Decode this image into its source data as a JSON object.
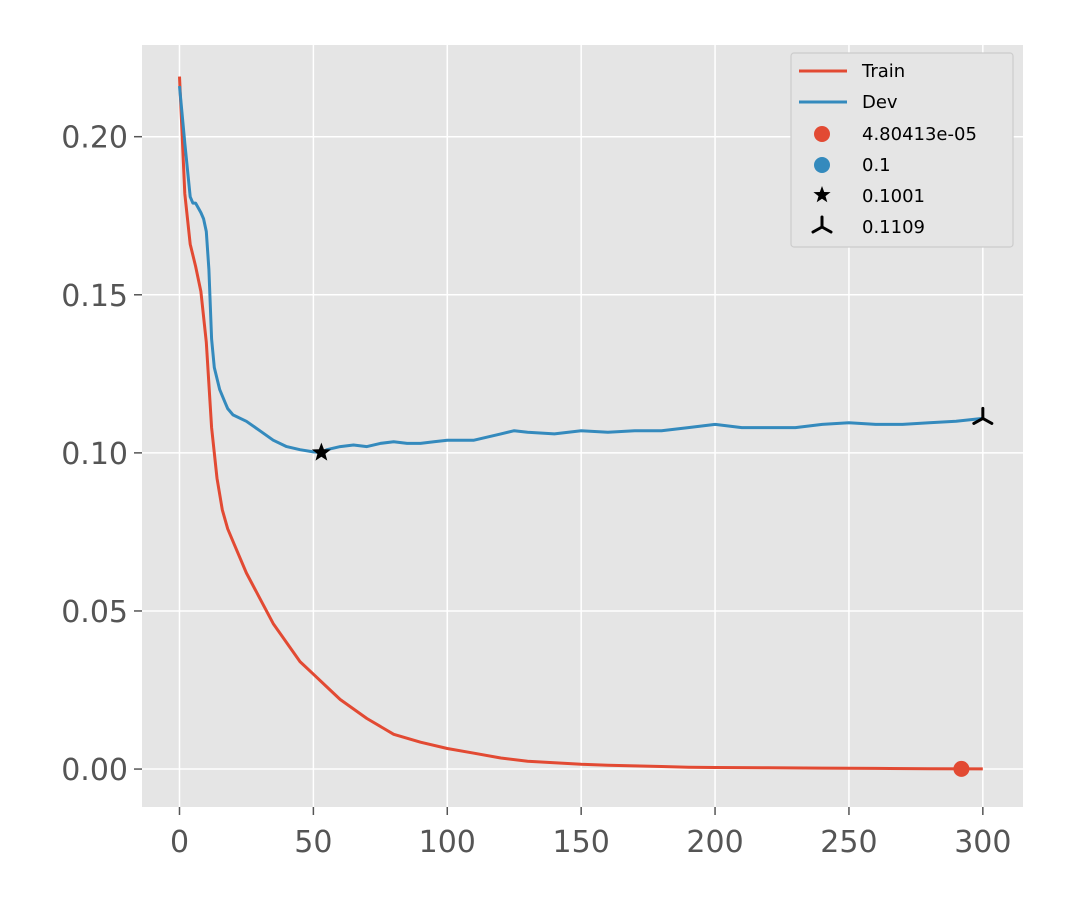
{
  "chart_data": {
    "type": "line",
    "title": "",
    "xlabel": "",
    "ylabel": "",
    "xlim": [
      -14,
      315
    ],
    "ylim": [
      -0.012,
      0.229
    ],
    "grid": true,
    "legend_position": "top-right",
    "x_ticks": [
      "0",
      "50",
      "100",
      "150",
      "200",
      "250",
      "300"
    ],
    "y_ticks": [
      "0.00",
      "0.05",
      "0.10",
      "0.15",
      "0.20"
    ],
    "colors": {
      "train": "#E24A33",
      "dev": "#348ABD",
      "background": "#E5E5E5",
      "grid": "#FFFFFF"
    },
    "series": [
      {
        "name": "Train",
        "x": [
          0,
          2,
          4,
          6,
          8,
          10,
          12,
          14,
          16,
          18,
          20,
          25,
          30,
          35,
          40,
          45,
          50,
          55,
          60,
          70,
          80,
          90,
          100,
          110,
          120,
          130,
          140,
          150,
          160,
          170,
          180,
          190,
          200,
          220,
          240,
          260,
          280,
          300
        ],
        "values": [
          0.219,
          0.182,
          0.166,
          0.159,
          0.151,
          0.135,
          0.108,
          0.092,
          0.082,
          0.076,
          0.072,
          0.062,
          0.054,
          0.046,
          0.04,
          0.034,
          0.03,
          0.026,
          0.022,
          0.016,
          0.011,
          0.0085,
          0.0065,
          0.005,
          0.0035,
          0.0025,
          0.002,
          0.0015,
          0.0012,
          0.001,
          0.0008,
          0.0006,
          0.0005,
          0.0004,
          0.0003,
          0.0002,
          0.0001,
          5e-05
        ]
      },
      {
        "name": "Dev",
        "x": [
          0,
          2,
          4,
          5,
          6,
          8,
          9,
          10,
          11,
          12,
          13,
          15,
          17,
          18,
          20,
          25,
          30,
          35,
          40,
          45,
          50,
          53,
          55,
          60,
          65,
          70,
          75,
          80,
          85,
          90,
          95,
          100,
          110,
          120,
          125,
          130,
          140,
          150,
          160,
          170,
          180,
          190,
          200,
          210,
          220,
          230,
          240,
          250,
          260,
          270,
          280,
          290,
          300
        ],
        "values": [
          0.216,
          0.198,
          0.181,
          0.179,
          0.179,
          0.176,
          0.174,
          0.17,
          0.158,
          0.136,
          0.127,
          0.12,
          0.116,
          0.114,
          0.112,
          0.11,
          0.107,
          0.104,
          0.102,
          0.101,
          0.1003,
          0.1001,
          0.101,
          0.102,
          0.1025,
          0.102,
          0.103,
          0.1035,
          0.103,
          0.103,
          0.1035,
          0.104,
          0.104,
          0.106,
          0.107,
          0.1065,
          0.106,
          0.107,
          0.1065,
          0.107,
          0.107,
          0.108,
          0.109,
          0.108,
          0.108,
          0.108,
          0.109,
          0.1095,
          0.109,
          0.109,
          0.1095,
          0.11,
          0.1109
        ]
      }
    ],
    "markers": [
      {
        "label": "4.80413e-05",
        "shape": "circle",
        "color": "#E24A33",
        "x": 292,
        "y": 5e-05
      },
      {
        "label": "0.1",
        "shape": "circle",
        "color": "#348ABD",
        "x": null,
        "y": null
      },
      {
        "label": "0.1001",
        "shape": "star",
        "color": "#000000",
        "x": 53,
        "y": 0.1001
      },
      {
        "label": "0.1109",
        "shape": "tri_down",
        "color": "#000000",
        "x": 300,
        "y": 0.1109
      }
    ]
  }
}
